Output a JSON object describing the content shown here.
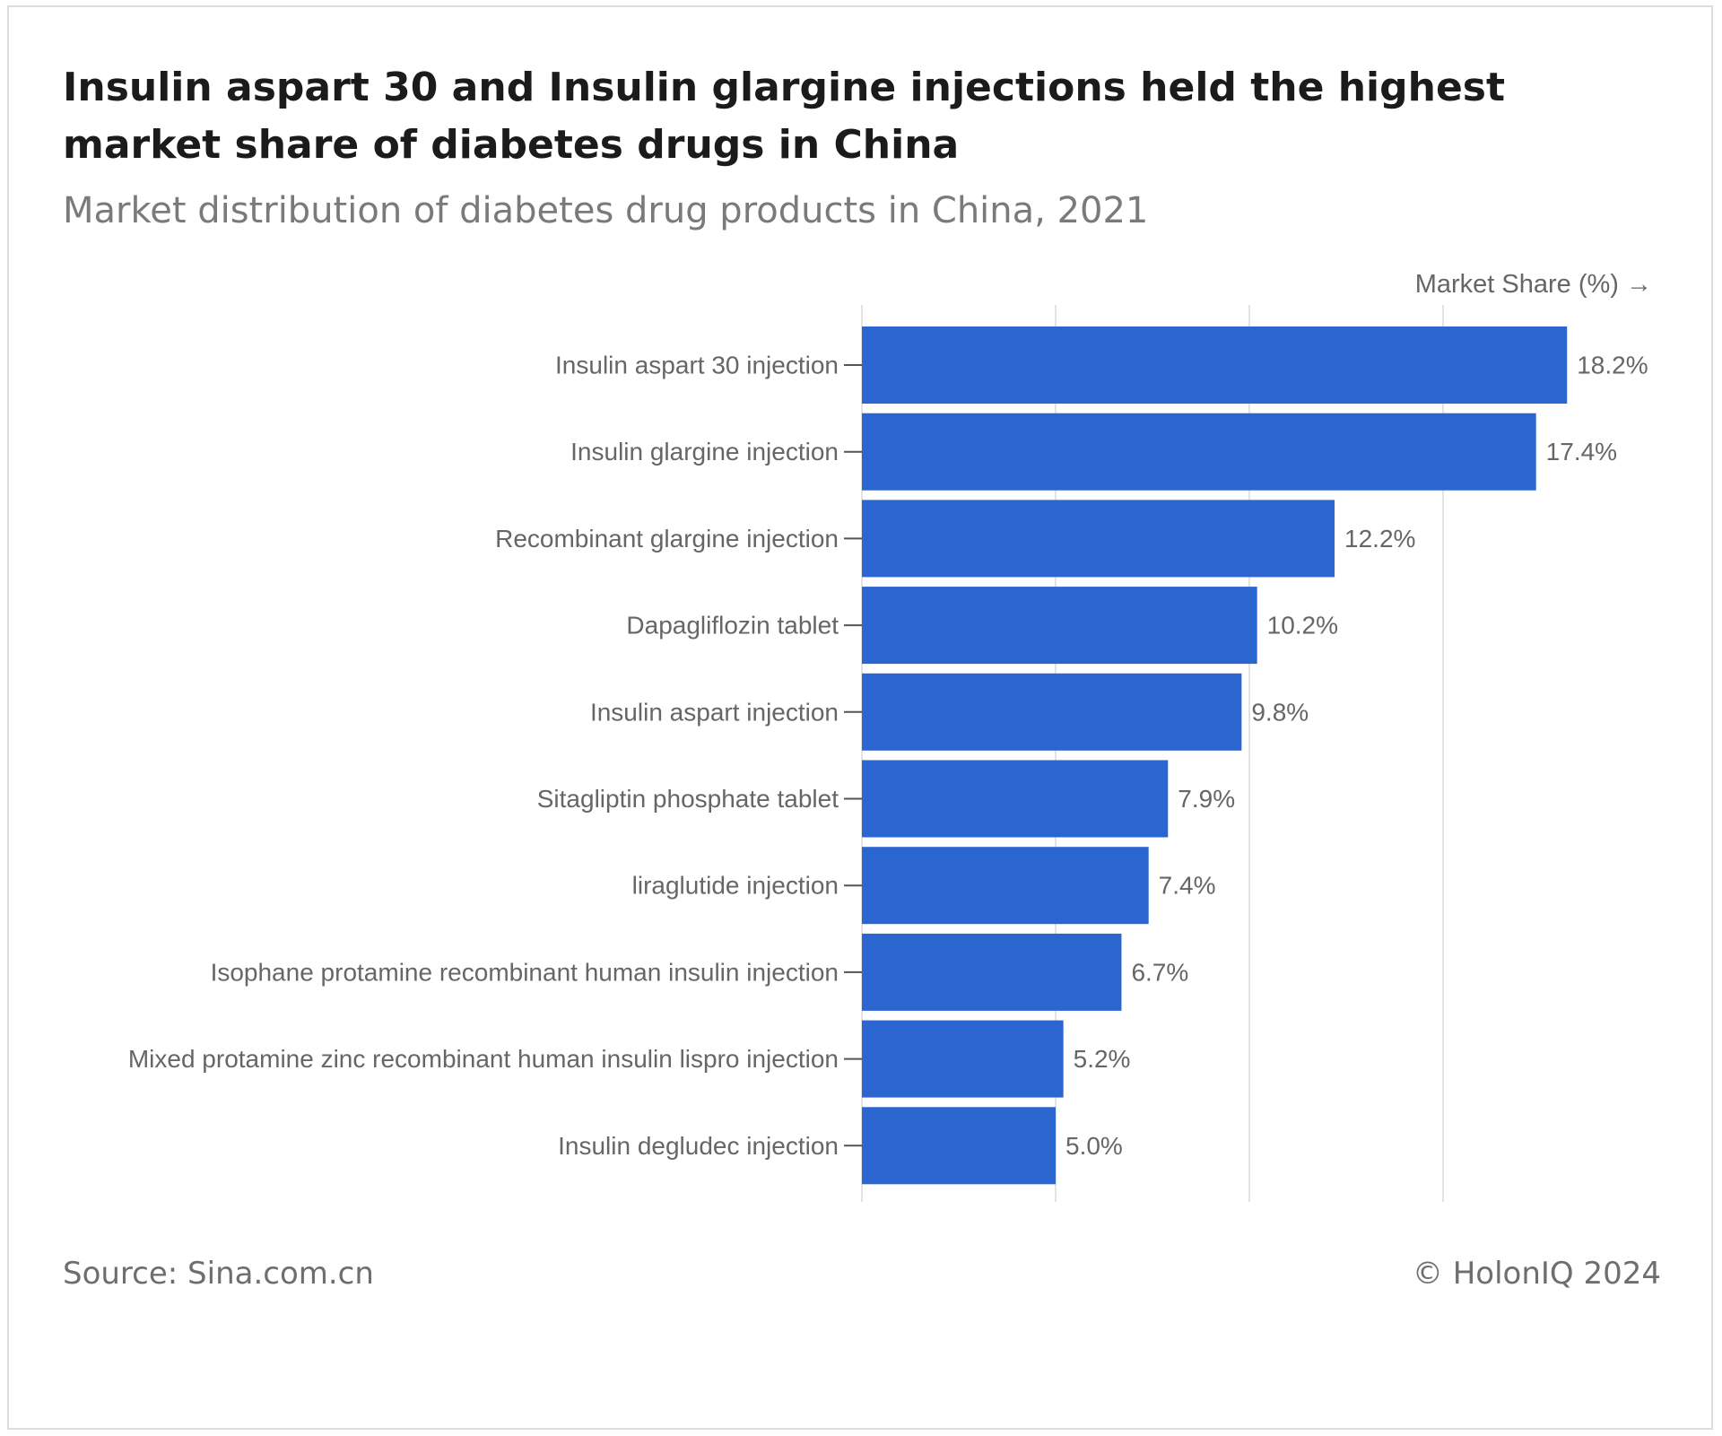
{
  "header": {
    "title": "Insulin aspart 30 and Insulin glargine injections held the highest market share of diabetes drugs in China",
    "subtitle": "Market distribution of diabetes drug products in China, 2021"
  },
  "footer": {
    "source": "Source: Sina.com.cn",
    "copyright": "© HolonIQ 2024"
  },
  "chart_data": {
    "type": "bar",
    "orientation": "horizontal",
    "title": "Insulin aspart 30 and Insulin glargine injections held the highest market share of diabetes drugs in China",
    "subtitle": "Market distribution of diabetes drug products in China, 2021",
    "xlabel": "Market Share (%) →",
    "ylabel": "",
    "xlim": [
      0,
      20
    ],
    "grid": "vertical",
    "bar_color": "#2b65d0",
    "categories": [
      "Insulin aspart 30 injection",
      "Insulin glargine injection",
      "Recombinant glargine injection",
      "Dapagliflozin tablet",
      "Insulin aspart injection",
      "Sitagliptin phosphate tablet",
      "liraglutide injection",
      "Isophane protamine recombinant human insulin injection",
      "Mixed protamine zinc recombinant human insulin lispro injection",
      "Insulin degludec injection"
    ],
    "values": [
      18.2,
      17.4,
      12.2,
      10.2,
      9.8,
      7.9,
      7.4,
      6.7,
      5.2,
      5.0
    ],
    "data_labels": [
      "18.2%",
      "17.4%",
      "12.2%",
      "10.2%",
      "9.8%",
      "7.9%",
      "7.4%",
      "6.7%",
      "5.2%",
      "5.0%"
    ]
  }
}
